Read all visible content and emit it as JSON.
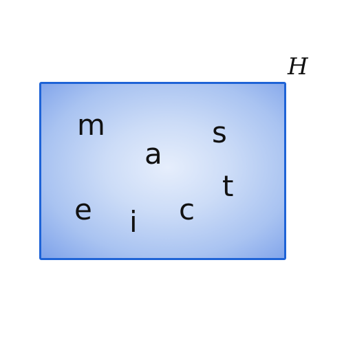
{
  "set": {
    "label": "H",
    "fill_color": "#bcd0f4",
    "border_color": "#1e63d6",
    "elements": [
      "m",
      "a",
      "s",
      "t",
      "e",
      "i",
      "c"
    ]
  }
}
